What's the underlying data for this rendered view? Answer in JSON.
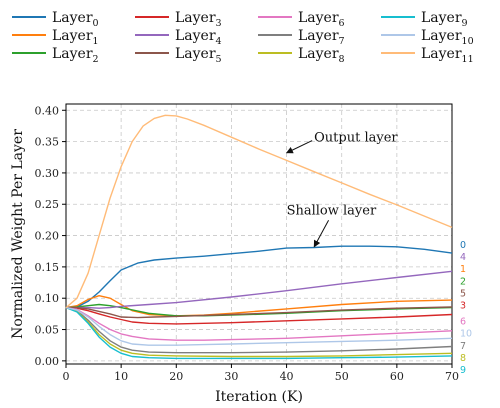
{
  "chart_data": {
    "type": "line",
    "title": "",
    "xlabel": "Iteration (K)",
    "ylabel": "Normalized Weight Per Layer",
    "xlim": [
      0,
      70
    ],
    "ylim": [
      -0.005,
      0.41
    ],
    "xticks": [
      0,
      10,
      20,
      30,
      40,
      50,
      60,
      70
    ],
    "yticks": [
      0.0,
      0.05,
      0.1,
      0.15,
      0.2,
      0.25,
      0.3,
      0.35,
      0.4
    ],
    "grid": true,
    "legend_placement": "top",
    "legend_columns": 4,
    "series": [
      {
        "name": "Layer",
        "sub": "0",
        "end_label": "0",
        "color": "#1f77b4",
        "x": [
          0,
          2,
          4,
          6,
          8,
          10,
          13,
          16,
          20,
          25,
          30,
          35,
          40,
          45,
          50,
          55,
          60,
          65,
          70
        ],
        "y": [
          0.085,
          0.086,
          0.095,
          0.11,
          0.128,
          0.145,
          0.156,
          0.161,
          0.164,
          0.167,
          0.171,
          0.175,
          0.18,
          0.181,
          0.183,
          0.183,
          0.182,
          0.178,
          0.172
        ]
      },
      {
        "name": "Layer",
        "sub": "1",
        "end_label": "1",
        "color": "#ff7f0e",
        "x": [
          0,
          2,
          4,
          6,
          8,
          10,
          12,
          15,
          20,
          25,
          30,
          40,
          50,
          60,
          70
        ],
        "y": [
          0.085,
          0.088,
          0.098,
          0.104,
          0.1,
          0.09,
          0.08,
          0.074,
          0.072,
          0.073,
          0.076,
          0.083,
          0.09,
          0.095,
          0.097
        ]
      },
      {
        "name": "Layer",
        "sub": "2",
        "end_label": "2",
        "color": "#2ca02c",
        "x": [
          0,
          2,
          4,
          6,
          8,
          10,
          15,
          20,
          25,
          30,
          40,
          50,
          60,
          70
        ],
        "y": [
          0.085,
          0.086,
          0.088,
          0.09,
          0.088,
          0.085,
          0.076,
          0.072,
          0.072,
          0.073,
          0.076,
          0.08,
          0.083,
          0.085
        ]
      },
      {
        "name": "Layer",
        "sub": "3",
        "end_label": "3",
        "color": "#d62728",
        "x": [
          0,
          2,
          4,
          6,
          8,
          10,
          12,
          15,
          20,
          25,
          30,
          40,
          50,
          60,
          70
        ],
        "y": [
          0.085,
          0.084,
          0.08,
          0.075,
          0.07,
          0.066,
          0.062,
          0.06,
          0.059,
          0.06,
          0.061,
          0.064,
          0.067,
          0.07,
          0.074
        ]
      },
      {
        "name": "Layer",
        "sub": "4",
        "end_label": "4",
        "color": "#9467bd",
        "x": [
          0,
          2,
          4,
          6,
          8,
          10,
          15,
          20,
          30,
          40,
          50,
          60,
          70
        ],
        "y": [
          0.085,
          0.085,
          0.085,
          0.084,
          0.085,
          0.087,
          0.09,
          0.093,
          0.102,
          0.112,
          0.123,
          0.133,
          0.143
        ]
      },
      {
        "name": "Layer",
        "sub": "5",
        "end_label": "5",
        "color": "#8c564b",
        "x": [
          0,
          2,
          4,
          6,
          8,
          10,
          13,
          16,
          20,
          30,
          40,
          50,
          60,
          70
        ],
        "y": [
          0.085,
          0.085,
          0.083,
          0.079,
          0.075,
          0.07,
          0.069,
          0.07,
          0.071,
          0.074,
          0.077,
          0.081,
          0.084,
          0.086
        ]
      },
      {
        "name": "Layer",
        "sub": "6",
        "end_label": "6",
        "color": "#e377c2",
        "x": [
          0,
          2,
          4,
          6,
          8,
          10,
          12,
          15,
          20,
          25,
          30,
          40,
          50,
          60,
          70
        ],
        "y": [
          0.085,
          0.082,
          0.072,
          0.06,
          0.05,
          0.043,
          0.039,
          0.035,
          0.033,
          0.033,
          0.034,
          0.036,
          0.04,
          0.044,
          0.048
        ]
      },
      {
        "name": "Layer",
        "sub": "7",
        "end_label": "7",
        "color": "#7f7f7f",
        "x": [
          0,
          2,
          4,
          6,
          8,
          10,
          12,
          15,
          20,
          30,
          40,
          50,
          60,
          70
        ],
        "y": [
          0.085,
          0.08,
          0.065,
          0.047,
          0.032,
          0.022,
          0.017,
          0.014,
          0.013,
          0.013,
          0.014,
          0.016,
          0.019,
          0.023
        ]
      },
      {
        "name": "Layer",
        "sub": "8",
        "end_label": "8",
        "color": "#bcbd22",
        "x": [
          0,
          2,
          4,
          6,
          8,
          10,
          12,
          15,
          20,
          30,
          40,
          50,
          60,
          70
        ],
        "y": [
          0.085,
          0.079,
          0.062,
          0.042,
          0.027,
          0.017,
          0.012,
          0.009,
          0.008,
          0.007,
          0.007,
          0.008,
          0.01,
          0.012
        ]
      },
      {
        "name": "Layer",
        "sub": "9",
        "end_label": "9",
        "color": "#17becf",
        "x": [
          0,
          2,
          4,
          6,
          8,
          10,
          12,
          15,
          20,
          30,
          40,
          50,
          60,
          70
        ],
        "y": [
          0.085,
          0.078,
          0.06,
          0.038,
          0.022,
          0.012,
          0.007,
          0.005,
          0.004,
          0.004,
          0.004,
          0.005,
          0.006,
          0.008
        ]
      },
      {
        "name": "Layer",
        "sub": "10",
        "end_label": "10",
        "color": "#aec7e8",
        "x": [
          0,
          2,
          4,
          6,
          8,
          10,
          12,
          15,
          20,
          25,
          30,
          40,
          50,
          60,
          70
        ],
        "y": [
          0.085,
          0.081,
          0.07,
          0.055,
          0.042,
          0.032,
          0.027,
          0.025,
          0.025,
          0.026,
          0.027,
          0.029,
          0.031,
          0.033,
          0.036
        ]
      },
      {
        "name": "Layer",
        "sub": "11",
        "end_label": "",
        "color": "#ffbb78",
        "x": [
          0,
          2,
          4,
          6,
          8,
          10,
          12,
          14,
          16,
          18,
          20,
          22,
          25,
          30,
          35,
          40,
          45,
          50,
          55,
          60,
          65,
          70
        ],
        "y": [
          0.085,
          0.1,
          0.14,
          0.2,
          0.26,
          0.31,
          0.35,
          0.375,
          0.387,
          0.392,
          0.391,
          0.386,
          0.376,
          0.357,
          0.338,
          0.32,
          0.302,
          0.284,
          0.266,
          0.249,
          0.231,
          0.213
        ]
      }
    ],
    "annotations": [
      {
        "text": "Output layer",
        "x_text": 45,
        "y_text": 0.35,
        "x_arrow": 40,
        "y_arrow": 0.332
      },
      {
        "text": "Shallow layer",
        "x_text": 40,
        "y_text": 0.234,
        "x_arrow": 45,
        "y_arrow": 0.182
      }
    ]
  }
}
